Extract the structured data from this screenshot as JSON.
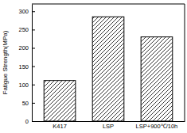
{
  "chart_data": {
    "type": "bar",
    "y_label": "Fatigue Strength(MPa)",
    "categories": [
      "K417",
      "LSP",
      "LSP+900℃/10h"
    ],
    "values": [
      111,
      285,
      230
    ],
    "color": "#000000",
    "ylim": [
      0,
      320
    ],
    "yticks": [
      0,
      50,
      100,
      150,
      200,
      250,
      300
    ],
    "grid": false
  }
}
